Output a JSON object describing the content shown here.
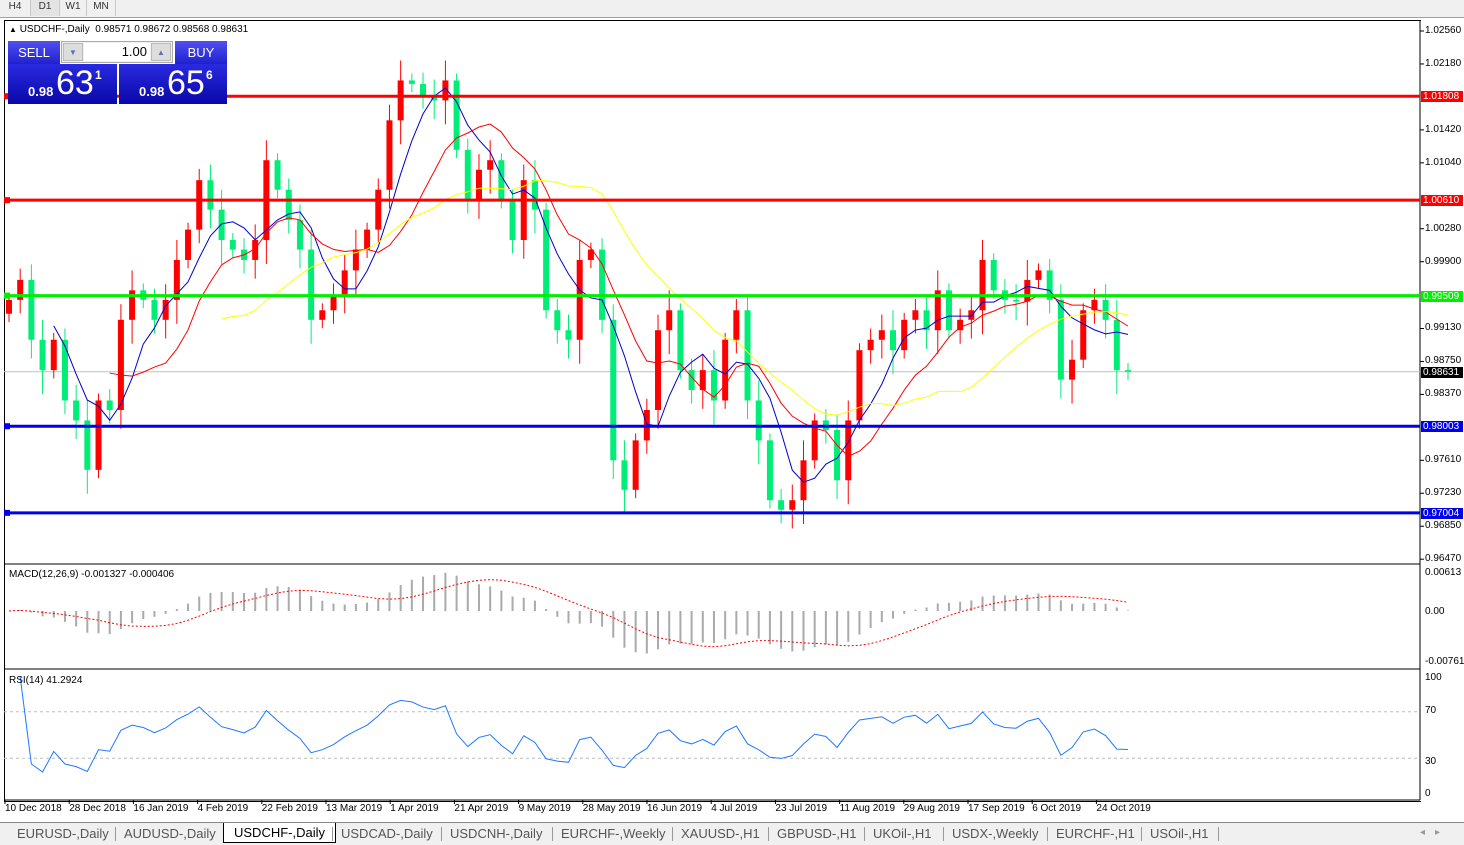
{
  "toolbar": {
    "timeframes": [
      {
        "label": "H4",
        "active": false
      },
      {
        "label": "D1",
        "active": true
      },
      {
        "label": "W1",
        "active": false
      },
      {
        "label": "MN",
        "active": false
      }
    ]
  },
  "chart": {
    "symbol_title": "USDCHF-,Daily",
    "ohlc_text": "0.98571 0.98672 0.98568 0.98631",
    "current_price": "0.98631",
    "colors": {
      "bull": "#ff0000",
      "bear": "#00ee77",
      "ma_fast": "#0000cc",
      "ma_mid": "#ff0000",
      "ma_slow": "#ffff00",
      "background": "#ffffff"
    }
  },
  "trade_panel": {
    "sell_label": "SELL",
    "buy_label": "BUY",
    "lot": "1.00",
    "sell_price": {
      "prefix": "0.98",
      "big": "63",
      "sup": "1"
    },
    "buy_price": {
      "prefix": "0.98",
      "big": "65",
      "sup": "6"
    }
  },
  "price_axis": [
    "1.02560",
    "1.02180",
    "1.01420",
    "1.01040",
    "1.00280",
    "0.99900",
    "0.99130",
    "0.98750",
    "0.98370",
    "0.97610",
    "0.97230",
    "0.96850",
    "0.96470"
  ],
  "levels": [
    {
      "price": "1.01808",
      "color": "#ff0000"
    },
    {
      "price": "1.00610",
      "color": "#ff0000"
    },
    {
      "price": "0.99509",
      "color": "#00ee00"
    },
    {
      "price": "0.98003",
      "color": "#0000ee"
    },
    {
      "price": "0.97004",
      "color": "#0000ee"
    }
  ],
  "macd": {
    "label": "MACD(12,26,9) -0.001327 -0.000406",
    "axis": [
      "0.00613",
      "0.00",
      "-0.007612"
    ]
  },
  "rsi": {
    "label": "RSI(14) 41.2924",
    "axis": [
      "100",
      "70",
      "30",
      "0"
    ]
  },
  "dates": [
    "10 Dec 2018",
    "28 Dec 2018",
    "16 Jan 2019",
    "4 Feb 2019",
    "22 Feb 2019",
    "13 Mar 2019",
    "1 Apr 2019",
    "21 Apr 2019",
    "9 May 2019",
    "28 May 2019",
    "16 Jun 2019",
    "4 Jul 2019",
    "23 Jul 2019",
    "11 Aug 2019",
    "29 Aug 2019",
    "17 Sep 2019",
    "6 Oct 2019",
    "24 Oct 2019"
  ],
  "tabs": [
    {
      "label": "EURUSD-,Daily"
    },
    {
      "label": "AUDUSD-,Daily"
    },
    {
      "label": "USDCHF-,Daily",
      "active": true
    },
    {
      "label": "USDCAD-,Daily"
    },
    {
      "label": "USDCNH-,Daily"
    },
    {
      "label": "EURCHF-,Weekly"
    },
    {
      "label": "XAUUSD-,H1"
    },
    {
      "label": "GBPUSD-,H1"
    },
    {
      "label": "UKOil-,H1"
    },
    {
      "label": "USDX-,Weekly"
    },
    {
      "label": "EURCHF-,H1"
    },
    {
      "label": "USOil-,H1"
    }
  ],
  "chart_data": {
    "type": "candlestick",
    "title": "USDCHF-,Daily",
    "ylim": [
      0.9647,
      1.0256
    ],
    "x_range": [
      "10 Dec 2018",
      "24 Oct 2019"
    ],
    "grid": false,
    "close": [
      0.9946,
      0.9969,
      0.99,
      0.9865,
      0.99,
      0.983,
      0.9807,
      0.975,
      0.983,
      0.9819,
      0.9923,
      0.9957,
      0.9946,
      0.9923,
      0.9946,
      0.9992,
      1.0027,
      1.0084,
      1.005,
      1.0015,
      1.0004,
      0.9992,
      1.0015,
      1.0107,
      1.0073,
      1.0038,
      1.0004,
      0.9923,
      0.9934,
      0.9952,
      0.998,
      1.0004,
      1.0027,
      1.0073,
      1.0153,
      1.0199,
      1.0195,
      1.0182,
      1.0176,
      1.0199,
      1.0119,
      1.0061,
      1.0096,
      1.0107,
      1.0061,
      1.0015,
      1.0084,
      1.005,
      0.9934,
      0.9911,
      0.99,
      0.9992,
      1.0004,
      0.9923,
      0.9761,
      0.9727,
      0.9784,
      0.9819,
      0.9911,
      0.9934,
      0.9865,
      0.9842,
      0.9865,
      0.983,
      0.99,
      0.9934,
      0.983,
      0.9784,
      0.9715,
      0.9704,
      0.9715,
      0.9761,
      0.9807,
      0.9796,
      0.9738,
      0.9807,
      0.9888,
      0.99,
      0.9911,
      0.9888,
      0.9923,
      0.9934,
      0.9911,
      0.9957,
      0.9911,
      0.9923,
      0.9934,
      0.9992,
      0.9957,
      0.9946,
      0.9944,
      0.9969,
      0.998,
      0.9946,
      0.9854,
      0.9877,
      0.9934,
      0.9946,
      0.9923,
      0.9865,
      0.98631
    ],
    "moving_averages": [
      {
        "period": 5,
        "color": "#0000cc"
      },
      {
        "period": 10,
        "color": "#ff0000"
      },
      {
        "period": 20,
        "color": "#ffff00"
      }
    ]
  }
}
